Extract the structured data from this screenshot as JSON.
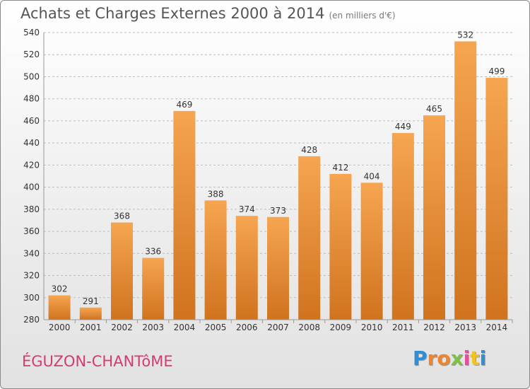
{
  "header": {
    "title": "Achats et Charges Externes 2000 à 2014",
    "subtitle": "(en milliers d'€)"
  },
  "footer": {
    "commune": "ÉGUZON-CHANTôME",
    "logo": {
      "letters": [
        "P",
        "r",
        "o",
        "x",
        "i",
        "t",
        "i"
      ],
      "colors": [
        "#2f8fd6",
        "#f0842a",
        "#f0842a",
        "#7fc241",
        "#e24f9c",
        "#f3c21c",
        "#2f8fd6"
      ]
    }
  },
  "chart_data": {
    "type": "bar",
    "categories": [
      "2000",
      "2001",
      "2002",
      "2003",
      "2004",
      "2005",
      "2006",
      "2007",
      "2008",
      "2009",
      "2010",
      "2011",
      "2012",
      "2013",
      "2014"
    ],
    "values": [
      302,
      291,
      368,
      336,
      469,
      388,
      374,
      373,
      428,
      412,
      404,
      449,
      465,
      532,
      499
    ],
    "yticks": [
      280,
      300,
      320,
      340,
      360,
      380,
      400,
      420,
      440,
      460,
      480,
      500,
      520,
      540
    ],
    "ylim": [
      280,
      540
    ],
    "grid": true,
    "colors": {
      "bar_top": "#f6a550",
      "bar_bottom": "#d0731f",
      "grid": "#bdbdbd",
      "axis_text": "#333333",
      "label_text": "#333333"
    }
  }
}
